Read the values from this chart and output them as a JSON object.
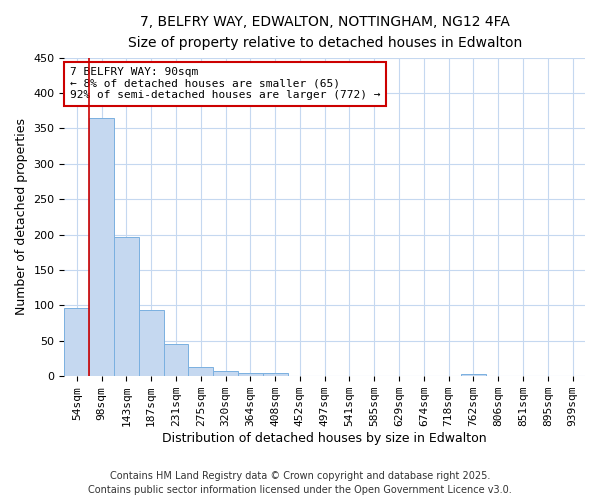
{
  "title_line1": "7, BELFRY WAY, EDWALTON, NOTTINGHAM, NG12 4FA",
  "title_line2": "Size of property relative to detached houses in Edwalton",
  "xlabel": "Distribution of detached houses by size in Edwalton",
  "ylabel": "Number of detached properties",
  "footer": "Contains HM Land Registry data © Crown copyright and database right 2025.\nContains public sector information licensed under the Open Government Licence v3.0.",
  "categories": [
    "54sqm",
    "98sqm",
    "143sqm",
    "187sqm",
    "231sqm",
    "275sqm",
    "320sqm",
    "364sqm",
    "408sqm",
    "452sqm",
    "497sqm",
    "541sqm",
    "585sqm",
    "629sqm",
    "674sqm",
    "718sqm",
    "762sqm",
    "806sqm",
    "851sqm",
    "895sqm",
    "939sqm"
  ],
  "values": [
    97,
    365,
    196,
    93,
    45,
    13,
    8,
    5,
    5,
    0,
    0,
    0,
    0,
    0,
    0,
    0,
    3,
    0,
    0,
    1,
    0
  ],
  "bar_color": "#c5d8f0",
  "bar_edge_color": "#7ab0e0",
  "bg_color": "#ffffff",
  "plot_bg_color": "#ffffff",
  "grid_color": "#c5d8f0",
  "annotation_text": "7 BELFRY WAY: 90sqm\n← 8% of detached houses are smaller (65)\n92% of semi-detached houses are larger (772) →",
  "annotation_box_color": "white",
  "annotation_box_edge_color": "#cc0000",
  "vline_color": "#cc0000",
  "ylim": [
    0,
    450
  ],
  "yticks": [
    0,
    50,
    100,
    150,
    200,
    250,
    300,
    350,
    400,
    450
  ],
  "title_fontsize": 10,
  "subtitle_fontsize": 9,
  "axis_label_fontsize": 9,
  "tick_fontsize": 8,
  "annotation_fontsize": 8,
  "footer_fontsize": 7
}
